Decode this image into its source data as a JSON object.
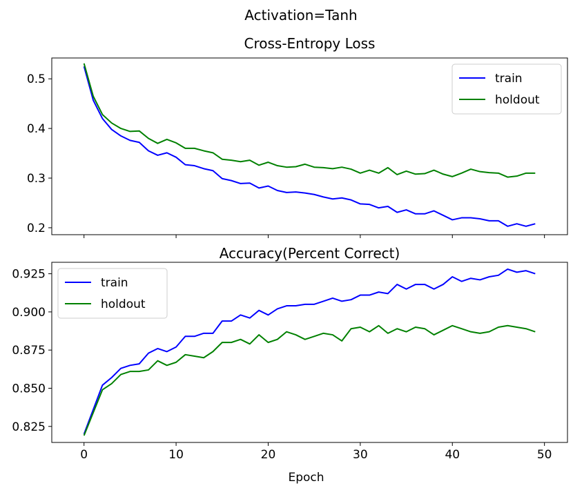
{
  "figure": {
    "suptitle": "Activation=Tanh"
  },
  "chart_data": [
    {
      "type": "line",
      "title": "Cross-Entropy Loss",
      "xlabel": "",
      "ylabel": "",
      "xlim": [
        -3.5,
        52.5
      ],
      "ylim": [
        0.186,
        0.542
      ],
      "xticks": [
        0,
        10,
        20,
        30,
        40,
        50
      ],
      "show_xtick_labels": false,
      "yticks": [
        0.2,
        0.3,
        0.4,
        0.5
      ],
      "ytick_labels": [
        "0.2",
        "0.3",
        "0.4",
        "0.5"
      ],
      "grid": false,
      "legend": "top-right",
      "series": [
        {
          "name": "train",
          "color": "#0000ff",
          "x": [
            0,
            1,
            2,
            3,
            4,
            5,
            6,
            7,
            8,
            9,
            10,
            11,
            12,
            13,
            14,
            15,
            16,
            17,
            18,
            19,
            20,
            21,
            22,
            23,
            24,
            25,
            26,
            27,
            28,
            29,
            30,
            31,
            32,
            33,
            34,
            35,
            36,
            37,
            38,
            39,
            40,
            41,
            42,
            43,
            44,
            45,
            46,
            47,
            48,
            49
          ],
          "values": [
            0.525,
            0.457,
            0.42,
            0.398,
            0.385,
            0.376,
            0.372,
            0.355,
            0.346,
            0.351,
            0.342,
            0.327,
            0.325,
            0.319,
            0.315,
            0.299,
            0.295,
            0.289,
            0.29,
            0.28,
            0.284,
            0.275,
            0.271,
            0.272,
            0.27,
            0.267,
            0.262,
            0.258,
            0.26,
            0.256,
            0.248,
            0.247,
            0.24,
            0.243,
            0.231,
            0.236,
            0.228,
            0.228,
            0.234,
            0.225,
            0.216,
            0.22,
            0.22,
            0.218,
            0.214,
            0.214,
            0.203,
            0.208,
            0.203,
            0.208
          ]
        },
        {
          "name": "holdout",
          "color": "#008000",
          "x": [
            0,
            1,
            2,
            3,
            4,
            5,
            6,
            7,
            8,
            9,
            10,
            11,
            12,
            13,
            14,
            15,
            16,
            17,
            18,
            19,
            20,
            21,
            22,
            23,
            24,
            25,
            26,
            27,
            28,
            29,
            30,
            31,
            32,
            33,
            34,
            35,
            36,
            37,
            38,
            39,
            40,
            41,
            42,
            43,
            44,
            45,
            46,
            47,
            48,
            49
          ],
          "values": [
            0.531,
            0.465,
            0.428,
            0.411,
            0.4,
            0.394,
            0.395,
            0.38,
            0.37,
            0.378,
            0.371,
            0.36,
            0.36,
            0.355,
            0.351,
            0.338,
            0.336,
            0.333,
            0.336,
            0.326,
            0.332,
            0.325,
            0.322,
            0.323,
            0.328,
            0.322,
            0.321,
            0.319,
            0.322,
            0.318,
            0.31,
            0.316,
            0.31,
            0.321,
            0.307,
            0.314,
            0.308,
            0.309,
            0.316,
            0.308,
            0.303,
            0.31,
            0.318,
            0.313,
            0.311,
            0.31,
            0.302,
            0.304,
            0.31,
            0.31
          ]
        }
      ]
    },
    {
      "type": "line",
      "title": "Accuracy(Percent Correct)",
      "xlabel": "Epoch",
      "ylabel": "",
      "xlim": [
        -3.5,
        52.5
      ],
      "ylim": [
        0.8145,
        0.9325
      ],
      "xticks": [
        0,
        10,
        20,
        30,
        40,
        50
      ],
      "xtick_labels": [
        "0",
        "10",
        "20",
        "30",
        "40",
        "50"
      ],
      "yticks": [
        0.825,
        0.85,
        0.875,
        0.9,
        0.925
      ],
      "ytick_labels": [
        "0.825",
        "0.850",
        "0.875",
        "0.900",
        "0.925"
      ],
      "grid": false,
      "legend": "top-left",
      "series": [
        {
          "name": "train",
          "color": "#0000ff",
          "x": [
            0,
            1,
            2,
            3,
            4,
            5,
            6,
            7,
            8,
            9,
            10,
            11,
            12,
            13,
            14,
            15,
            16,
            17,
            18,
            19,
            20,
            21,
            22,
            23,
            24,
            25,
            26,
            27,
            28,
            29,
            30,
            31,
            32,
            33,
            34,
            35,
            36,
            37,
            38,
            39,
            40,
            41,
            42,
            43,
            44,
            45,
            46,
            47,
            48,
            49
          ],
          "values": [
            0.82,
            0.836,
            0.852,
            0.857,
            0.863,
            0.865,
            0.866,
            0.873,
            0.876,
            0.874,
            0.877,
            0.884,
            0.884,
            0.886,
            0.886,
            0.894,
            0.894,
            0.898,
            0.896,
            0.901,
            0.898,
            0.902,
            0.904,
            0.904,
            0.905,
            0.905,
            0.907,
            0.909,
            0.907,
            0.908,
            0.911,
            0.911,
            0.913,
            0.912,
            0.918,
            0.915,
            0.918,
            0.918,
            0.915,
            0.918,
            0.923,
            0.92,
            0.922,
            0.921,
            0.923,
            0.924,
            0.928,
            0.926,
            0.927,
            0.925
          ]
        },
        {
          "name": "holdout",
          "color": "#008000",
          "x": [
            0,
            1,
            2,
            3,
            4,
            5,
            6,
            7,
            8,
            9,
            10,
            11,
            12,
            13,
            14,
            15,
            16,
            17,
            18,
            19,
            20,
            21,
            22,
            23,
            24,
            25,
            26,
            27,
            28,
            29,
            30,
            31,
            32,
            33,
            34,
            35,
            36,
            37,
            38,
            39,
            40,
            41,
            42,
            43,
            44,
            45,
            46,
            47,
            48,
            49
          ],
          "values": [
            0.819,
            0.834,
            0.849,
            0.853,
            0.859,
            0.861,
            0.861,
            0.862,
            0.868,
            0.865,
            0.867,
            0.872,
            0.871,
            0.87,
            0.874,
            0.88,
            0.88,
            0.882,
            0.879,
            0.885,
            0.88,
            0.882,
            0.887,
            0.885,
            0.882,
            0.884,
            0.886,
            0.885,
            0.881,
            0.889,
            0.89,
            0.887,
            0.891,
            0.886,
            0.889,
            0.887,
            0.89,
            0.889,
            0.885,
            0.888,
            0.891,
            0.889,
            0.887,
            0.886,
            0.887,
            0.89,
            0.891,
            0.89,
            0.889,
            0.887
          ]
        }
      ]
    }
  ]
}
